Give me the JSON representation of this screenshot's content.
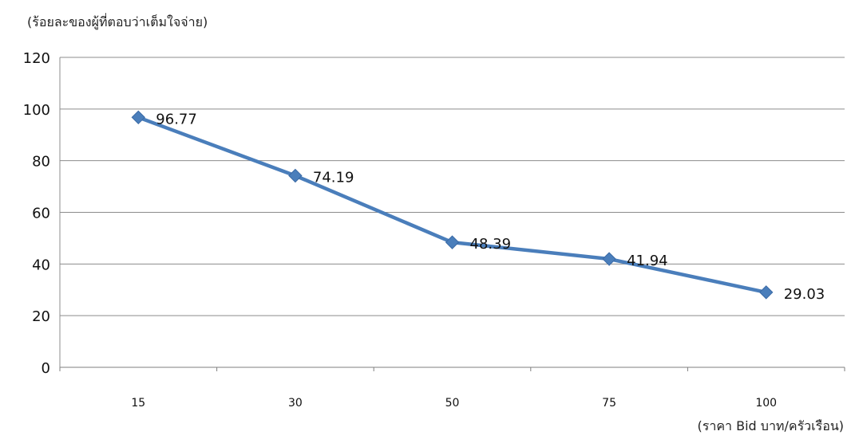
{
  "chart_data": {
    "type": "line",
    "title": "",
    "ylabel": "(ร้อยละของผู้ที่ตอบว่าเต็มใจจ่าย)",
    "xlabel": "(ราคา Bid บาท/ครัวเรือน)",
    "categories": [
      "15",
      "30",
      "50",
      "75",
      "100"
    ],
    "series": [
      {
        "values": [
          96.77,
          74.19,
          48.39,
          41.94,
          29.03
        ],
        "labels": [
          "96.77",
          "74.19",
          "48.39",
          "41.94",
          "29.03"
        ]
      }
    ],
    "ylim": [
      0,
      120
    ],
    "yticks": [
      "0",
      "20",
      "40",
      "60",
      "80",
      "100",
      "120"
    ],
    "grid": true,
    "marker": "diamond",
    "line_color": "#4a7ebb"
  }
}
